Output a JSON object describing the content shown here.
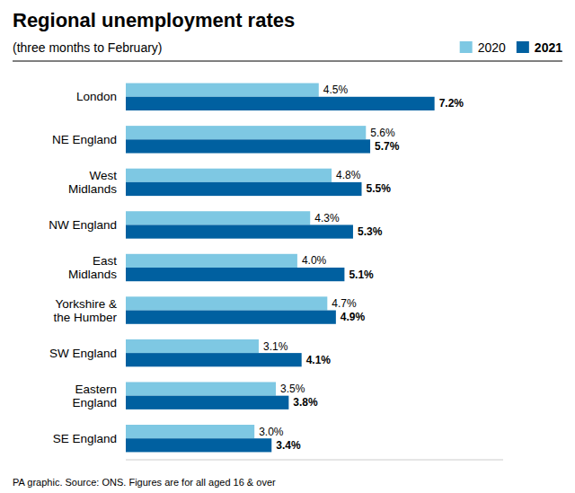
{
  "chart_data": {
    "type": "bar",
    "orientation": "horizontal",
    "title": "Regional unemployment rates",
    "subtitle": "(three months to February)",
    "annotations": [
      "PA graphic. Source: ONS. Figures are for all aged 16 & over"
    ],
    "categories": [
      "London",
      "NE England",
      "West\nMidlands",
      "NW England",
      "East\nMidlands",
      "Yorkshire &\nthe Humber",
      "SW England",
      "Eastern\nEngland",
      "SE England"
    ],
    "series": [
      {
        "name": "2020",
        "color": "#7EC8E3",
        "values": [
          4.5,
          5.6,
          4.8,
          4.3,
          4.0,
          4.7,
          3.1,
          3.5,
          3.0
        ],
        "value_labels": [
          "4.5%",
          "5.6%",
          "4.8%",
          "4.3%",
          "4.0%",
          "4.7%",
          "3.1%",
          "3.5%",
          "3.0%"
        ]
      },
      {
        "name": "2021",
        "color": "#0060A0",
        "values": [
          7.2,
          5.7,
          5.5,
          5.3,
          5.1,
          4.9,
          4.1,
          3.8,
          3.4
        ],
        "value_labels": [
          "7.2%",
          "5.7%",
          "5.5%",
          "5.3%",
          "5.1%",
          "4.9%",
          "4.1%",
          "3.8%",
          "3.4%"
        ]
      }
    ],
    "xlim": [
      0,
      8.8
    ],
    "data_labels": true,
    "tick_labels": "y",
    "grid": false,
    "legend": "top-right"
  }
}
